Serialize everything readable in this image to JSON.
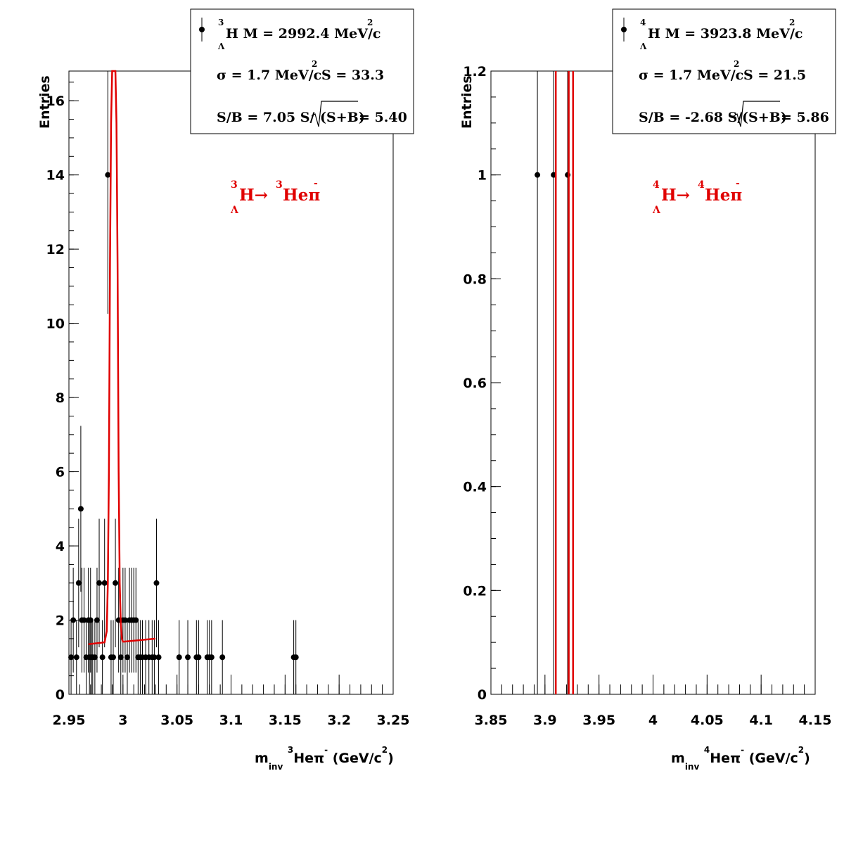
{
  "colors": {
    "fit": "#e00000",
    "points": "#000000",
    "background": "#ffffff"
  },
  "panels": [
    {
      "ylabel": "Entries",
      "xlabel": {
        "main": "m",
        "sub": "inv",
        "sup1": "3",
        "particle": "Heπ",
        "sup2": "-",
        "unit": "(GeV/c",
        "unit_sup": "2",
        "unit_close": ")"
      },
      "yticks": [
        "0",
        "2",
        "4",
        "6",
        "8",
        "10",
        "12",
        "14",
        "16"
      ],
      "xticks": [
        "2.95",
        "3",
        "3.05",
        "3.1",
        "3.15",
        "3.2",
        "3.25"
      ],
      "stats": {
        "line1": {
          "sup": "3",
          "sub": "Λ",
          "text": "H M = 2992.4 MeV/c",
          "power": "2"
        },
        "line2": {
          "text": "σ = 1.7 MeV/c",
          "power": "2",
          "tail": "S = 33.3"
        },
        "line3": {
          "text": "S/B = 7.05  S/",
          "root": "(S+B)",
          "tail": "= 5.40"
        }
      },
      "decay": {
        "sup_nucleus": "3",
        "sub": "Λ",
        "mother": "H",
        "arrow": "→",
        "sup_daughter": "3",
        "daughter": "Heπ",
        "charge": "-"
      }
    },
    {
      "ylabel": "Entries",
      "xlabel": {
        "main": "m",
        "sub": "inv",
        "sup1": "4",
        "particle": "Heπ",
        "sup2": "-",
        "unit": "(GeV/c",
        "unit_sup": "2",
        "unit_close": ")"
      },
      "yticks": [
        "0",
        "0.2",
        "0.4",
        "0.6",
        "0.8",
        "1",
        "1.2"
      ],
      "xticks": [
        "3.85",
        "3.9",
        "3.95",
        "4",
        "4.05",
        "4.1",
        "4.15"
      ],
      "stats": {
        "line1": {
          "sup": "4",
          "sub": "Λ",
          "text": "H M = 3923.8 MeV/c",
          "power": "2"
        },
        "line2": {
          "text": "σ = 1.7 MeV/c",
          "power": "2",
          "tail": "S = 21.5"
        },
        "line3": {
          "text": "S/B = -2.68  S/",
          "root": "(S+B)",
          "tail": "= 5.86"
        }
      },
      "decay": {
        "sup_nucleus": "4",
        "sub": "Λ",
        "mother": "H",
        "arrow": "→",
        "sup_daughter": "4",
        "daughter": "Heπ",
        "charge": "-"
      }
    }
  ],
  "chart_data": [
    {
      "type": "scatter",
      "xlabel": "m_inv ³Heπ⁻ (GeV/c²)",
      "ylabel": "Entries",
      "xlim": [
        2.95,
        3.25
      ],
      "ylim": [
        0,
        16.8
      ],
      "grid": false,
      "legend_position": "top-right",
      "series": [
        {
          "x": [
            2.952,
            2.954,
            2.957,
            2.959,
            2.961,
            2.962,
            2.964,
            2.966,
            2.968,
            2.969,
            2.97,
            2.971,
            2.972,
            2.974,
            2.976,
            2.978,
            2.981,
            2.983,
            2.986,
            2.989,
            2.991,
            2.993,
            2.996,
            2.998,
            3.0,
            3.002,
            3.004,
            3.006,
            3.008,
            3.01,
            3.012,
            3.014,
            3.016,
            3.018,
            3.021,
            3.024,
            3.027,
            3.029,
            3.031,
            3.033,
            3.052,
            3.06,
            3.068,
            3.07,
            3.078,
            3.08,
            3.082,
            3.092,
            3.158,
            3.16
          ],
          "y": [
            1,
            2,
            1,
            3,
            5,
            2,
            2,
            1,
            2,
            1,
            2,
            1,
            1,
            1,
            2,
            3,
            1,
            3,
            14,
            1,
            1,
            3,
            2,
            1,
            2,
            2,
            1,
            2,
            2,
            2,
            2,
            1,
            1,
            1,
            1,
            1,
            1,
            1,
            3,
            1,
            1,
            1,
            1,
            1,
            1,
            1,
            1,
            1,
            1,
            1
          ]
        }
      ],
      "fit": {
        "x": [
          2.968,
          2.983,
          2.985,
          2.986,
          2.987,
          2.988,
          2.989,
          2.99,
          2.991,
          2.992,
          2.993,
          2.994,
          2.995,
          2.996,
          2.997,
          2.998,
          2.999,
          3.0,
          3.001,
          3.03
        ],
        "y": [
          1.35,
          1.4,
          1.7,
          3.0,
          6.0,
          11.6,
          15.4,
          16.8,
          16.8,
          16.8,
          16.8,
          15.4,
          11.6,
          6.0,
          3.0,
          1.9,
          1.5,
          1.42,
          1.42,
          1.5
        ]
      }
    },
    {
      "type": "scatter",
      "xlabel": "m_inv ⁴Heπ⁻ (GeV/c²)",
      "ylabel": "Entries",
      "xlim": [
        3.85,
        4.15
      ],
      "ylim": [
        0,
        1.2
      ],
      "grid": false,
      "legend_position": "top-right",
      "series": [
        {
          "x": [
            3.893,
            3.908,
            3.921
          ],
          "y": [
            1,
            1,
            1
          ]
        }
      ],
      "fit": {
        "x_lines": [
          3.91,
          3.922,
          3.926
        ]
      }
    }
  ]
}
